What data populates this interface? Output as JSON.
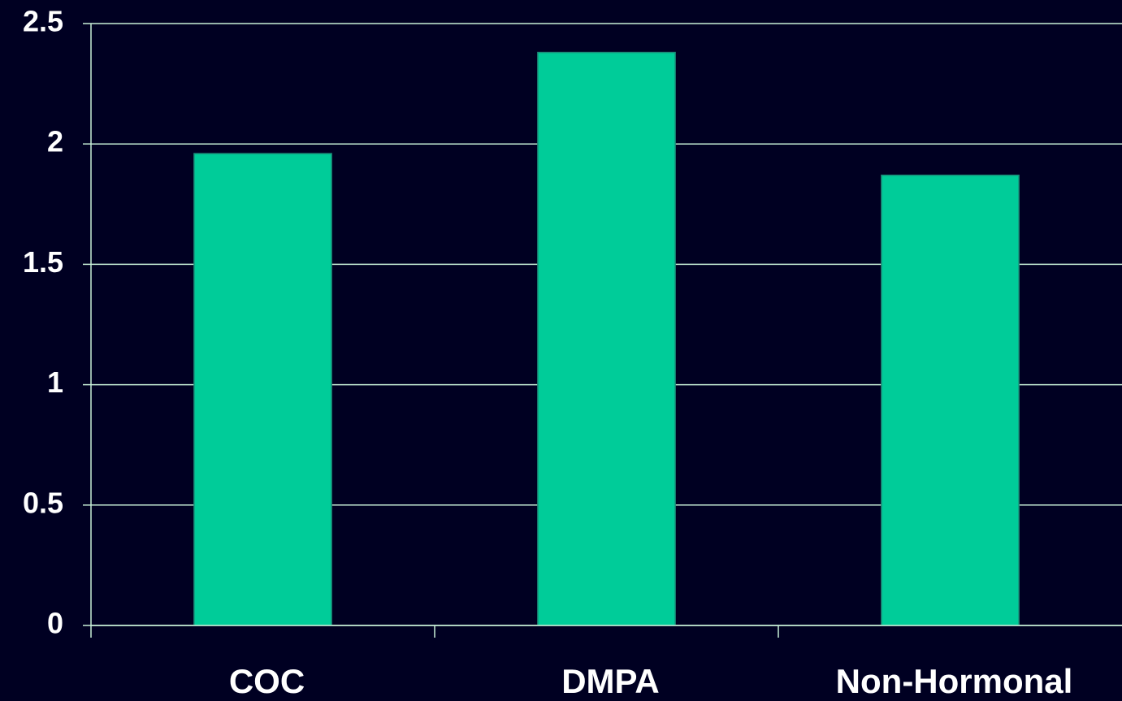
{
  "chart_data": {
    "type": "bar",
    "categories": [
      "COC",
      "DMPA",
      "Non-Hormonal"
    ],
    "values": [
      1.96,
      2.38,
      1.87
    ],
    "color": "#00cc99",
    "ylim": [
      0,
      2.5
    ],
    "yticks": [
      0,
      0.5,
      1,
      1.5,
      2,
      2.5
    ],
    "grid": true
  }
}
